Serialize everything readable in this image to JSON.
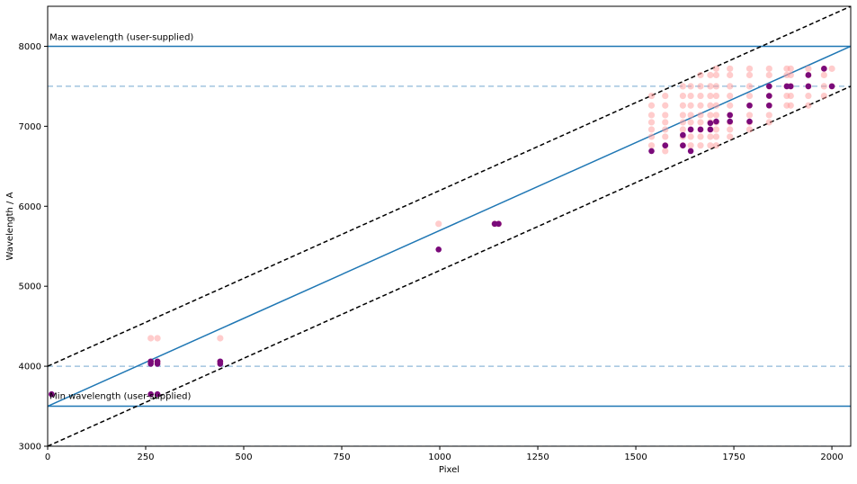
{
  "chart_data": {
    "type": "scatter",
    "title": "",
    "xlabel": "Pixel",
    "ylabel": "Wavelength / A",
    "xlim": [
      0,
      2048
    ],
    "ylim": [
      3000,
      8500
    ],
    "x_ticks": [
      0,
      250,
      500,
      750,
      1000,
      1250,
      1500,
      1750,
      2000
    ],
    "y_ticks": [
      3000,
      4000,
      5000,
      6000,
      7000,
      8000
    ],
    "grid": false,
    "annotations": {
      "max_label": "Max wavelength (user-supplied)",
      "min_label": "Min wavelength (user-supplied)"
    },
    "horizontal_lines": [
      {
        "y": 8000,
        "style": "solid"
      },
      {
        "y": 3500,
        "style": "solid"
      },
      {
        "y": 7500,
        "style": "dashed"
      },
      {
        "y": 4000,
        "style": "dashed"
      },
      {
        "y": 3000,
        "style": "dashed"
      }
    ],
    "fit_line": {
      "from": [
        0,
        3500
      ],
      "to": [
        2048,
        8000
      ]
    },
    "bound_lines": [
      {
        "from": [
          0,
          4000
        ],
        "to": [
          2048,
          8500
        ]
      },
      {
        "from": [
          0,
          3000
        ],
        "to": [
          2048,
          7500
        ]
      }
    ],
    "series": [
      {
        "points": [
          [
            263,
            4350
          ],
          [
            280,
            4350
          ],
          [
            440,
            4350
          ],
          [
            263,
            4050
          ],
          [
            280,
            4050
          ],
          [
            440,
            4050
          ],
          [
            997,
            5780
          ],
          [
            1140,
            5780
          ],
          [
            1150,
            5780
          ],
          [
            1540,
            7380
          ],
          [
            1540,
            7260
          ],
          [
            1540,
            7140
          ],
          [
            1540,
            7050
          ],
          [
            1540,
            6960
          ],
          [
            1540,
            6870
          ],
          [
            1540,
            6760
          ],
          [
            1575,
            7380
          ],
          [
            1575,
            7260
          ],
          [
            1575,
            7140
          ],
          [
            1575,
            7050
          ],
          [
            1575,
            6960
          ],
          [
            1575,
            6870
          ],
          [
            1575,
            6760
          ],
          [
            1575,
            6690
          ],
          [
            1620,
            7500
          ],
          [
            1620,
            7380
          ],
          [
            1620,
            7260
          ],
          [
            1620,
            7140
          ],
          [
            1620,
            7050
          ],
          [
            1620,
            6960
          ],
          [
            1620,
            6870
          ],
          [
            1620,
            6760
          ],
          [
            1640,
            7500
          ],
          [
            1640,
            7380
          ],
          [
            1640,
            7260
          ],
          [
            1640,
            7140
          ],
          [
            1640,
            7050
          ],
          [
            1640,
            6960
          ],
          [
            1640,
            6870
          ],
          [
            1640,
            6760
          ],
          [
            1665,
            7640
          ],
          [
            1665,
            7500
          ],
          [
            1665,
            7380
          ],
          [
            1665,
            7260
          ],
          [
            1665,
            7140
          ],
          [
            1665,
            7050
          ],
          [
            1665,
            6960
          ],
          [
            1665,
            6870
          ],
          [
            1665,
            6760
          ],
          [
            1690,
            7640
          ],
          [
            1690,
            7500
          ],
          [
            1690,
            7380
          ],
          [
            1690,
            7260
          ],
          [
            1690,
            7140
          ],
          [
            1690,
            7050
          ],
          [
            1690,
            6960
          ],
          [
            1690,
            6870
          ],
          [
            1690,
            6760
          ],
          [
            1705,
            7720
          ],
          [
            1705,
            7640
          ],
          [
            1705,
            7500
          ],
          [
            1705,
            7380
          ],
          [
            1705,
            7260
          ],
          [
            1705,
            7140
          ],
          [
            1705,
            7050
          ],
          [
            1705,
            6960
          ],
          [
            1705,
            6870
          ],
          [
            1705,
            6760
          ],
          [
            1740,
            7720
          ],
          [
            1740,
            7640
          ],
          [
            1740,
            7500
          ],
          [
            1740,
            7380
          ],
          [
            1740,
            7260
          ],
          [
            1740,
            7140
          ],
          [
            1740,
            7050
          ],
          [
            1740,
            6960
          ],
          [
            1740,
            6870
          ],
          [
            1790,
            7720
          ],
          [
            1790,
            7640
          ],
          [
            1790,
            7500
          ],
          [
            1790,
            7380
          ],
          [
            1790,
            7260
          ],
          [
            1790,
            7140
          ],
          [
            1790,
            7050
          ],
          [
            1790,
            6960
          ],
          [
            1840,
            7720
          ],
          [
            1840,
            7640
          ],
          [
            1840,
            7500
          ],
          [
            1840,
            7380
          ],
          [
            1840,
            7260
          ],
          [
            1840,
            7140
          ],
          [
            1840,
            7050
          ],
          [
            1885,
            7720
          ],
          [
            1885,
            7640
          ],
          [
            1885,
            7500
          ],
          [
            1885,
            7380
          ],
          [
            1885,
            7260
          ],
          [
            1895,
            7720
          ],
          [
            1895,
            7640
          ],
          [
            1895,
            7500
          ],
          [
            1895,
            7380
          ],
          [
            1895,
            7260
          ],
          [
            1940,
            7720
          ],
          [
            1940,
            7640
          ],
          [
            1940,
            7500
          ],
          [
            1940,
            7380
          ],
          [
            1940,
            7260
          ],
          [
            1980,
            7720
          ],
          [
            1980,
            7640
          ],
          [
            1980,
            7500
          ],
          [
            1980,
            7380
          ],
          [
            2000,
            7720
          ],
          [
            2000,
            7500
          ]
        ]
      },
      {
        "points": [
          [
            10,
            3650
          ],
          [
            263,
            3650
          ],
          [
            280,
            3650
          ],
          [
            263,
            4030
          ],
          [
            263,
            4060
          ],
          [
            280,
            4030
          ],
          [
            280,
            4060
          ],
          [
            440,
            4030
          ],
          [
            440,
            4060
          ],
          [
            997,
            5460
          ],
          [
            1140,
            5780
          ],
          [
            1150,
            5780
          ],
          [
            1540,
            6690
          ],
          [
            1575,
            6760
          ],
          [
            1620,
            6760
          ],
          [
            1620,
            6890
          ],
          [
            1640,
            6690
          ],
          [
            1640,
            6960
          ],
          [
            1665,
            6960
          ],
          [
            1690,
            6960
          ],
          [
            1690,
            7040
          ],
          [
            1705,
            7060
          ],
          [
            1740,
            7060
          ],
          [
            1740,
            7140
          ],
          [
            1790,
            7060
          ],
          [
            1790,
            7260
          ],
          [
            1840,
            7260
          ],
          [
            1840,
            7380
          ],
          [
            1840,
            7500
          ],
          [
            1885,
            7500
          ],
          [
            1895,
            7500
          ],
          [
            1940,
            7500
          ],
          [
            1940,
            7640
          ],
          [
            1980,
            7720
          ],
          [
            2000,
            7500
          ]
        ]
      }
    ],
    "colors": {
      "line": "#1f77b4",
      "dashed_h": "#8fb8d9",
      "bounds": "#000000",
      "points_light": "#ff9a9a",
      "points_dark": "#7a0a7a"
    }
  }
}
